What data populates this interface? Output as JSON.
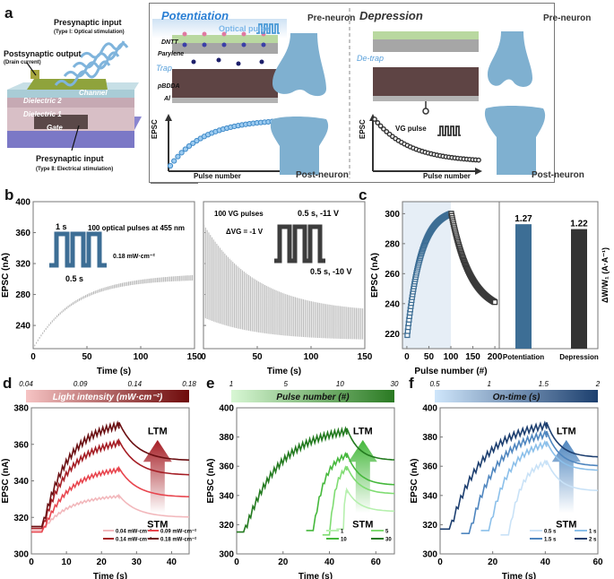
{
  "panel_labels": {
    "a": "a",
    "b": "b",
    "c": "c",
    "d": "d",
    "e": "e",
    "f": "f"
  },
  "panel_a": {
    "device": {
      "optical_input": "Presynaptic input",
      "optical_input_sub": "(Type Ⅰ: Optical stimulation)",
      "output": "Postsynaptic output",
      "output_sub": "(Drain current)",
      "channel": "Channel",
      "dielectric2": "Dielectric 2",
      "dielectric1": "Dielectric 1",
      "gate": "Gate",
      "electrical_input": "Presynaptic input",
      "electrical_input_sub": "(Type Ⅱ: Electrical stimulation)"
    },
    "potentiation": {
      "title": "Potentiation",
      "optical_pulse": "Optical pulse",
      "layers": [
        "DNTT",
        "Parylene",
        "Trap",
        "pBDDA",
        "Al"
      ],
      "y_label": "EPSC",
      "x_label": "Pulse number",
      "pre": "Pre-neuron",
      "post": "Post-neuron"
    },
    "depression": {
      "title": "Depression",
      "detrap": "De-trap",
      "vg_pulse": "VG pulse",
      "y_label": "EPSC",
      "x_label": "Pulse number",
      "pre": "Pre-neuron",
      "post": "Post-neuron"
    }
  },
  "colors": {
    "potentiation_blue": "#3d6e95",
    "depression_dark": "#333333",
    "neuron_blue": "#7fb0d0",
    "title_blue": "#2a7fd4",
    "trace_gray": "#b8b8b8",
    "shade": "#e6eef6"
  },
  "chart_data": [
    {
      "id": "b-left",
      "type": "line",
      "title": "",
      "xlabel": "Time (s)",
      "ylabel": "EPSC (nA)",
      "xlim": [
        0,
        150
      ],
      "ylim": [
        210,
        400
      ],
      "xticks": [
        0,
        50,
        100,
        150
      ],
      "yticks": [
        240,
        280,
        320,
        360,
        400
      ],
      "annotations": [
        "100 optical pulses at 455 nm",
        "1 s",
        "0.5 s",
        "0.18 mW·cm⁻²"
      ],
      "series": [
        {
          "name": "optical pulses",
          "pulses": 100,
          "start": 213,
          "end_low": 298,
          "end_high": 305
        }
      ]
    },
    {
      "id": "b-right",
      "type": "line",
      "xlabel": "Time (s)",
      "xlim": [
        0,
        150
      ],
      "ylim": [
        210,
        400
      ],
      "xticks": [
        0,
        50,
        100,
        150
      ],
      "annotations": [
        "100 VG pulses",
        "ΔVG = -1 V",
        "0.5 s, -11 V",
        "0.5 s, -10 V"
      ],
      "series": [
        {
          "name": "VG pulses",
          "pulses": 100,
          "start_high": 370,
          "start_low": 250,
          "end_high": 262,
          "end_low": 222
        }
      ]
    },
    {
      "id": "c-left",
      "type": "scatter",
      "xlabel": "Pulse number (#)",
      "ylabel": "EPSC (nA)",
      "xlim": [
        -10,
        210
      ],
      "ylim": [
        210,
        308
      ],
      "xticks": [
        0,
        50,
        100,
        150,
        200
      ],
      "yticks": [
        220,
        240,
        260,
        280,
        300
      ],
      "series": [
        {
          "name": "Potentiation",
          "x_range": [
            1,
            100
          ],
          "y_start": 219,
          "y_end": 300
        },
        {
          "name": "Depression",
          "x_range": [
            101,
            200
          ],
          "y_start": 300,
          "y_end": 241
        }
      ]
    },
    {
      "id": "c-right",
      "type": "bar",
      "ylabel": "ΔW/W₁ (A·A⁻¹)",
      "categories": [
        "Potentiation",
        "Depression"
      ],
      "values": [
        1.27,
        1.22
      ],
      "ylim": [
        0,
        1.5
      ]
    },
    {
      "id": "d",
      "type": "line",
      "colorbar": {
        "label": "Light intensity (mW·cm⁻²)",
        "ticks": [
          "0.04",
          "0.09",
          "0.14",
          "0.18"
        ],
        "from": "#f6c4c4",
        "to": "#6e0a0a"
      },
      "xlabel": "Time (s)",
      "ylabel": "EPSC (nA)",
      "xlim": [
        0,
        45
      ],
      "ylim": [
        300,
        380
      ],
      "xticks": [
        0,
        10,
        20,
        30,
        40
      ],
      "yticks": [
        300,
        320,
        340,
        360,
        380
      ],
      "annotations": [
        "LTM",
        "STM"
      ],
      "legend": [
        "0.04 mW·cm⁻²",
        "0.09 mW·cm⁻²",
        "0.14 mW·cm⁻²",
        "0.18 mW·cm⁻²"
      ],
      "series": [
        {
          "name": "0.04 mW·cm⁻²",
          "color": "#f2b8bc",
          "base": 313,
          "t_on": 3,
          "t_off": 25,
          "peak": 332,
          "final": 320
        },
        {
          "name": "0.09 mW·cm⁻²",
          "color": "#e8454e",
          "base": 312,
          "t_on": 3,
          "t_off": 25,
          "peak": 347,
          "final": 331
        },
        {
          "name": "0.14 mW·cm⁻²",
          "color": "#a51d24",
          "base": 314,
          "t_on": 3,
          "t_off": 25,
          "peak": 362,
          "final": 343
        },
        {
          "name": "0.18 mW·cm⁻²",
          "color": "#6b0f12",
          "base": 315,
          "t_on": 3,
          "t_off": 25,
          "peak": 372,
          "final": 351
        }
      ]
    },
    {
      "id": "e",
      "type": "line",
      "colorbar": {
        "label": "Pulse number (#)",
        "ticks": [
          "1",
          "5",
          "10",
          "30"
        ],
        "from": "#d8f7d4",
        "to": "#2a7a22"
      },
      "xlabel": "Time (s)",
      "ylabel": "EPSC (nA)",
      "xlim": [
        0,
        68
      ],
      "ylim": [
        300,
        400
      ],
      "xticks": [
        0,
        20,
        40,
        60
      ],
      "yticks": [
        300,
        320,
        340,
        360,
        380,
        400
      ],
      "annotations": [
        "LTM",
        "STM"
      ],
      "legend": [
        "1",
        "5",
        "10",
        "30"
      ],
      "series": [
        {
          "name": "1",
          "color": "#b6f0ae",
          "base": 317,
          "t_on": 46,
          "t_off": 47.5,
          "peak": 344,
          "final": 329
        },
        {
          "name": "5",
          "color": "#7fdc72",
          "base": 313,
          "t_on": 40,
          "t_off": 47.5,
          "peak": 360,
          "final": 341
        },
        {
          "name": "10",
          "color": "#45b83c",
          "base": 316,
          "t_on": 33,
          "t_off": 47.5,
          "peak": 369,
          "final": 347
        },
        {
          "name": "30",
          "color": "#237a1f",
          "base": 315,
          "t_on": 3,
          "t_off": 47.5,
          "peak": 386,
          "final": 364
        }
      ]
    },
    {
      "id": "f",
      "type": "line",
      "colorbar": {
        "label": "On-time (s)",
        "ticks": [
          "0.5",
          "1",
          "1.5",
          "2"
        ],
        "from": "#cfe6fb",
        "to": "#1c3f6e"
      },
      "xlabel": "Time (s)",
      "ylabel": "EPSC (nA)",
      "xlim": [
        0,
        60
      ],
      "ylim": [
        300,
        400
      ],
      "xticks": [
        0,
        20,
        40,
        60
      ],
      "yticks": [
        300,
        320,
        340,
        360,
        380,
        400
      ],
      "annotations": [
        "LTM",
        "STM"
      ],
      "legend": [
        "0.5 s",
        "1 s",
        "1.5 s",
        "2 s"
      ],
      "series": [
        {
          "name": "0.5 s",
          "color": "#c9e2f7",
          "base": 313,
          "t_on": 26,
          "t_off": 40.5,
          "peak": 364,
          "final": 343
        },
        {
          "name": "1 s",
          "color": "#8cc0ea",
          "base": 316,
          "t_on": 18.5,
          "t_off": 40.5,
          "peak": 377,
          "final": 357
        },
        {
          "name": "1.5 s",
          "color": "#4f86bf",
          "base": 314,
          "t_on": 11,
          "t_off": 40.5,
          "peak": 384,
          "final": 360
        },
        {
          "name": "2 s",
          "color": "#1d3f70",
          "base": 317,
          "t_on": 3.5,
          "t_off": 40.5,
          "peak": 390,
          "final": 366
        }
      ]
    }
  ]
}
